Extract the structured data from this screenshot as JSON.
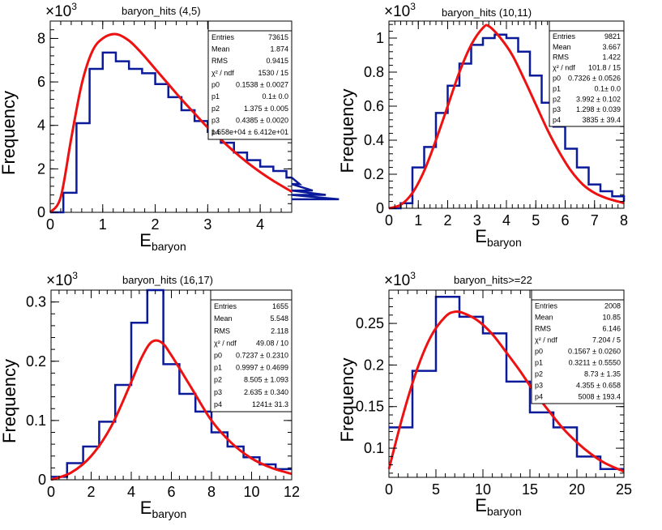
{
  "chart_data": [
    {
      "type": "histogram",
      "title": "baryon_hits (4,5)",
      "xlabel": "E",
      "xlabel_sub": "baryon",
      "ylabel": "Frequency",
      "yscale_label": "×10",
      "yscale_exp": "3",
      "xlim": [
        0,
        4.6
      ],
      "ylim": [
        0,
        8.8
      ],
      "xticks": [
        0,
        1,
        2,
        3,
        4
      ],
      "yticks": [
        0,
        2,
        4,
        6,
        8
      ],
      "bin_width": 0.25,
      "bin_edges_start": 0,
      "values": [
        0.0,
        0.9,
        4.1,
        6.6,
        7.35,
        6.95,
        6.6,
        6.4,
        5.9,
        5.3,
        4.7,
        4.2,
        3.7,
        3.2,
        2.75,
        2.4,
        2.1,
        1.9,
        1.6,
        1.3,
        1.0,
        0.8,
        0.6
      ],
      "fit": [
        [
          0.0,
          0.0
        ],
        [
          0.2,
          0.7
        ],
        [
          0.4,
          3.4
        ],
        [
          0.6,
          5.9
        ],
        [
          0.8,
          7.4
        ],
        [
          1.0,
          8.0
        ],
        [
          1.25,
          8.2
        ],
        [
          1.5,
          7.9
        ],
        [
          1.75,
          7.3
        ],
        [
          2.0,
          6.6
        ],
        [
          2.25,
          5.9
        ],
        [
          2.5,
          5.2
        ],
        [
          2.75,
          4.55
        ],
        [
          3.0,
          3.9
        ],
        [
          3.25,
          3.35
        ],
        [
          3.5,
          2.8
        ],
        [
          3.75,
          2.3
        ],
        [
          4.0,
          1.85
        ],
        [
          4.25,
          1.45
        ],
        [
          4.6,
          0.95
        ]
      ],
      "stats": {
        "rows": [
          {
            "label": "Entries",
            "value": "73615"
          },
          {
            "label": "Mean",
            "value": "1.874"
          },
          {
            "label": "RMS",
            "value": "0.9415"
          },
          {
            "label": "χ² / ndf",
            "value": "1530 / 15"
          },
          {
            "label": "p0",
            "value": "0.1538 ± 0.0027"
          },
          {
            "label": "p1",
            "value": "0.1± 0.0"
          },
          {
            "label": "p2",
            "value": "1.375 ± 0.005"
          },
          {
            "label": "p3",
            "value": "0.4385 ± 0.0020"
          },
          {
            "label": "p4",
            "value": "1.658e+04 ± 6.412e+01"
          }
        ]
      }
    },
    {
      "type": "histogram",
      "title": "baryon_hits (10,11)",
      "xlabel": "E",
      "xlabel_sub": "baryon",
      "ylabel": "Frequency",
      "yscale_label": "×10",
      "yscale_exp": "3",
      "xlim": [
        0,
        8
      ],
      "ylim": [
        0,
        1.1
      ],
      "xticks": [
        0,
        1,
        2,
        3,
        4,
        5,
        6,
        7,
        8
      ],
      "yticks": [
        0,
        0.2,
        0.4,
        0.6,
        0.8,
        1
      ],
      "bin_width": 0.4,
      "bin_edges_start": 0,
      "values": [
        0.0,
        0.03,
        0.24,
        0.36,
        0.56,
        0.72,
        0.85,
        0.96,
        1.0,
        1.02,
        1.0,
        0.92,
        0.78,
        0.62,
        0.48,
        0.35,
        0.24,
        0.14,
        0.1,
        0.07,
        0.04
      ],
      "fit": [
        [
          0.0,
          0.0
        ],
        [
          0.4,
          0.02
        ],
        [
          0.8,
          0.09
        ],
        [
          1.2,
          0.22
        ],
        [
          1.6,
          0.4
        ],
        [
          2.0,
          0.6
        ],
        [
          2.4,
          0.8
        ],
        [
          2.8,
          0.96
        ],
        [
          3.2,
          1.06
        ],
        [
          3.4,
          1.07
        ],
        [
          3.8,
          1.0
        ],
        [
          4.2,
          0.9
        ],
        [
          4.6,
          0.76
        ],
        [
          5.0,
          0.61
        ],
        [
          5.4,
          0.46
        ],
        [
          5.8,
          0.33
        ],
        [
          6.2,
          0.22
        ],
        [
          6.6,
          0.14
        ],
        [
          7.0,
          0.09
        ],
        [
          7.4,
          0.06
        ],
        [
          8.0,
          0.03
        ]
      ],
      "stats": {
        "rows": [
          {
            "label": "Entries",
            "value": "9821"
          },
          {
            "label": "Mean",
            "value": "3.667"
          },
          {
            "label": "RMS",
            "value": "1.422"
          },
          {
            "label": "χ² / ndf",
            "value": "101.8 / 15"
          },
          {
            "label": "p0",
            "value": "0.7326 ± 0.0526"
          },
          {
            "label": "p1",
            "value": "0.1± 0.0"
          },
          {
            "label": "p2",
            "value": "3.992 ± 0.102"
          },
          {
            "label": "p3",
            "value": "1.298 ± 0.039"
          },
          {
            "label": "p4",
            "value": "3835 ± 39.4"
          }
        ]
      }
    },
    {
      "type": "histogram",
      "title": "baryon_hits (16,17)",
      "xlabel": "E",
      "xlabel_sub": "baryon",
      "ylabel": "Frequency",
      "yscale_label": "×10",
      "yscale_exp": "3",
      "xlim": [
        0,
        12
      ],
      "ylim": [
        0,
        0.32
      ],
      "xticks": [
        0,
        2,
        4,
        6,
        8,
        10,
        12
      ],
      "yticks": [
        0,
        0.1,
        0.2,
        0.3
      ],
      "bin_width": 0.8,
      "bin_edges_start": 0,
      "values": [
        0.005,
        0.028,
        0.056,
        0.098,
        0.16,
        0.265,
        0.32,
        0.195,
        0.145,
        0.115,
        0.08,
        0.056,
        0.038,
        0.026,
        0.018
      ],
      "fit": [
        [
          0.0,
          0.0
        ],
        [
          1.0,
          0.012
        ],
        [
          2.0,
          0.04
        ],
        [
          3.0,
          0.09
        ],
        [
          4.0,
          0.165
        ],
        [
          4.5,
          0.205
        ],
        [
          5.0,
          0.232
        ],
        [
          5.5,
          0.232
        ],
        [
          6.0,
          0.21
        ],
        [
          7.0,
          0.155
        ],
        [
          8.0,
          0.1
        ],
        [
          9.0,
          0.062
        ],
        [
          10.0,
          0.036
        ],
        [
          11.0,
          0.02
        ],
        [
          12.0,
          0.01
        ]
      ],
      "stats": {
        "rows": [
          {
            "label": "Entries",
            "value": "1655"
          },
          {
            "label": "Mean",
            "value": "5.548"
          },
          {
            "label": "RMS",
            "value": "2.118"
          },
          {
            "label": "χ² / ndf",
            "value": "49.08 / 10"
          },
          {
            "label": "p0",
            "value": "0.7237 ± 0.2310"
          },
          {
            "label": "p1",
            "value": "0.9997 ± 0.4699"
          },
          {
            "label": "p2",
            "value": "8.505 ± 1.093"
          },
          {
            "label": "p3",
            "value": "2.635 ± 0.340"
          },
          {
            "label": "p4",
            "value": "1241± 31.3"
          }
        ]
      }
    },
    {
      "type": "histogram",
      "title": "baryon_hits>=22",
      "xlabel": "E",
      "xlabel_sub": "baryon",
      "ylabel": "Frequency",
      "yscale_label": "×10",
      "yscale_exp": "3",
      "xlim": [
        0,
        25
      ],
      "ylim": [
        0.065,
        0.29
      ],
      "xticks": [
        0,
        5,
        10,
        15,
        20,
        25
      ],
      "yticks": [
        0.1,
        0.15,
        0.2,
        0.25
      ],
      "bin_width": 2.5,
      "bin_edges_start": 0,
      "values": [
        0.125,
        0.193,
        0.282,
        0.258,
        0.238,
        0.18,
        0.143,
        0.125,
        0.09,
        0.075
      ],
      "fit": [
        [
          0.0,
          0.075
        ],
        [
          1.5,
          0.14
        ],
        [
          3.0,
          0.195
        ],
        [
          4.5,
          0.235
        ],
        [
          6.0,
          0.258
        ],
        [
          7.0,
          0.264
        ],
        [
          8.0,
          0.262
        ],
        [
          9.5,
          0.253
        ],
        [
          11.0,
          0.237
        ],
        [
          12.5,
          0.215
        ],
        [
          14.0,
          0.192
        ],
        [
          15.5,
          0.167
        ],
        [
          17.0,
          0.145
        ],
        [
          18.5,
          0.124
        ],
        [
          20.0,
          0.107
        ],
        [
          21.5,
          0.093
        ],
        [
          23.0,
          0.082
        ],
        [
          25.0,
          0.072
        ]
      ],
      "stats": {
        "rows": [
          {
            "label": "Entries",
            "value": "2008"
          },
          {
            "label": "Mean",
            "value": "10.85"
          },
          {
            "label": "RMS",
            "value": "6.146"
          },
          {
            "label": "χ² / ndf",
            "value": "7.204 / 5"
          },
          {
            "label": "p0",
            "value": "0.1567 ± 0.0260"
          },
          {
            "label": "p1",
            "value": "0.3211 ± 0.5550"
          },
          {
            "label": "p2",
            "value": "8.73 ± 1.35"
          },
          {
            "label": "p3",
            "value": "4.355 ± 0.658"
          },
          {
            "label": "p4",
            "value": "5008 ± 193.4"
          }
        ]
      }
    }
  ],
  "colors": {
    "hist": "#0a1a9a",
    "fit": "#ee1111",
    "frame": "#000000"
  }
}
